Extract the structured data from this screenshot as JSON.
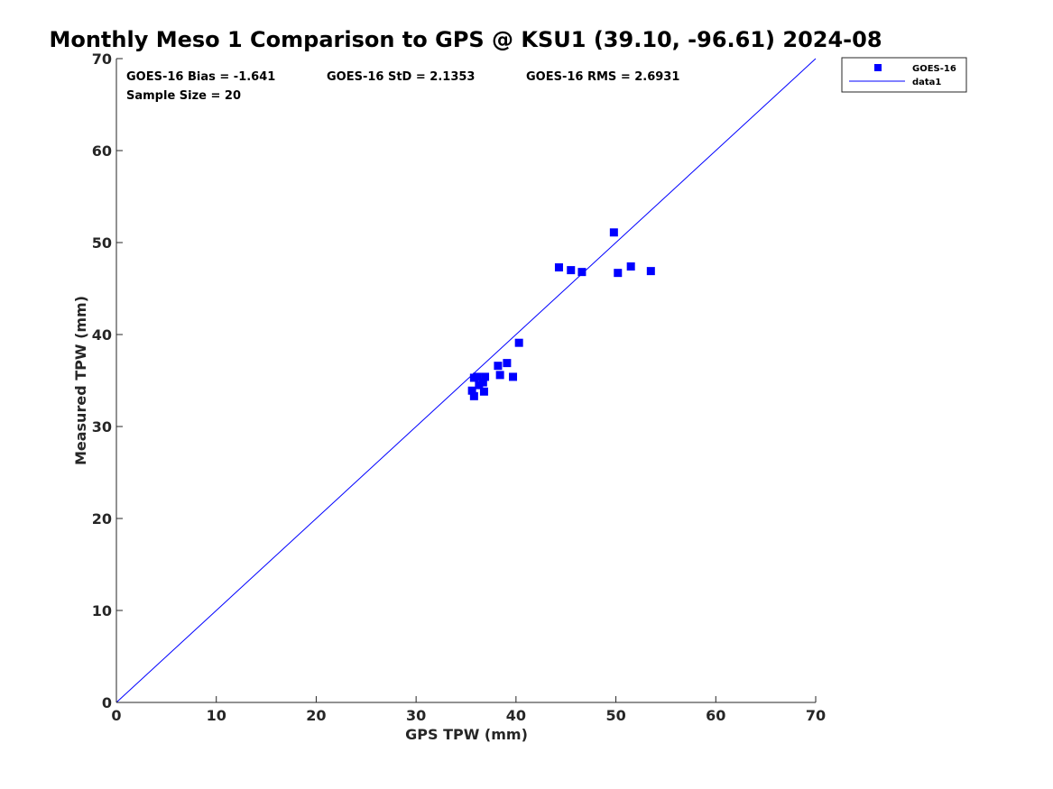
{
  "chart_data": {
    "type": "scatter",
    "title": "Monthly Meso 1 Comparison to GPS @ KSU1 (39.10, -96.61) 2024-08",
    "xlabel": "GPS TPW (mm)",
    "ylabel": "Measured TPW (mm)",
    "xlim": [
      0,
      70
    ],
    "ylim": [
      0,
      70
    ],
    "xticks": [
      0,
      10,
      20,
      30,
      40,
      50,
      60,
      70
    ],
    "yticks": [
      0,
      10,
      20,
      30,
      40,
      50,
      60,
      70
    ],
    "grid": false,
    "legend_position": "top-right (outside)",
    "stats": {
      "bias": "GOES-16 Bias = -1.641",
      "std": "GOES-16 StD = 2.1353",
      "rms": "GOES-16 RMS = 2.6931",
      "sample": "Sample Size = 20"
    },
    "series": [
      {
        "name": "GOES-16",
        "type": "scatter",
        "marker": "square",
        "color": "#0000ff",
        "points": [
          [
            35.6,
            33.9
          ],
          [
            35.8,
            33.3
          ],
          [
            35.8,
            35.3
          ],
          [
            36.1,
            35.4
          ],
          [
            36.3,
            34.5
          ],
          [
            36.7,
            34.8
          ],
          [
            36.8,
            33.8
          ],
          [
            36.9,
            35.4
          ],
          [
            38.2,
            36.6
          ],
          [
            38.4,
            35.6
          ],
          [
            39.1,
            36.9
          ],
          [
            39.7,
            35.4
          ],
          [
            40.3,
            39.1
          ],
          [
            44.3,
            47.3
          ],
          [
            45.5,
            47.0
          ],
          [
            46.6,
            46.8
          ],
          [
            49.8,
            51.1
          ],
          [
            50.2,
            46.7
          ],
          [
            51.5,
            47.4
          ],
          [
            53.5,
            46.9
          ]
        ]
      },
      {
        "name": "data1",
        "type": "line",
        "color": "#0000ff",
        "points": [
          [
            0,
            0
          ],
          [
            70,
            70
          ]
        ]
      }
    ]
  }
}
